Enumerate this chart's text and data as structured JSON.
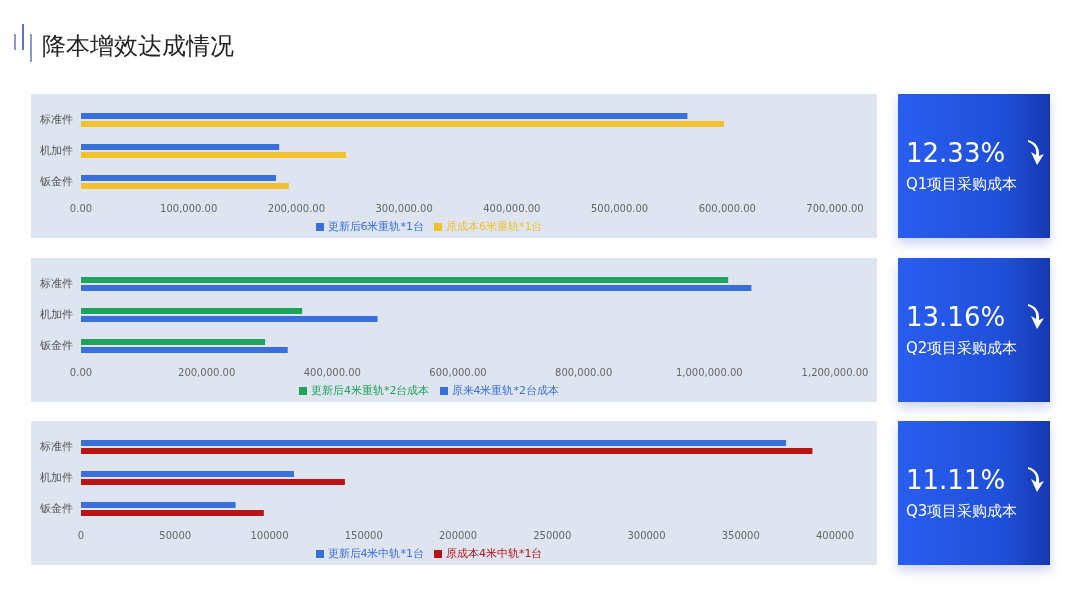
{
  "chart_data": [
    {
      "type": "bar",
      "orientation": "horizontal",
      "title": "降本增效达成情况",
      "categories": [
        "标准件",
        "机加件",
        "钣金件"
      ],
      "series": [
        {
          "name": "更新后6米重轨*1台",
          "color": "#3a6fdc",
          "values": [
            563000,
            184000,
            181000
          ]
        },
        {
          "name": "原成本6米重轨*1台",
          "color": "#f2c12e",
          "values": [
            597000,
            246000,
            193000
          ]
        }
      ],
      "xlim": [
        0,
        700000
      ],
      "xticks": [
        {
          "value": 0,
          "label": "0.00"
        },
        {
          "value": 100000,
          "label": "100,000.00"
        },
        {
          "value": 200000,
          "label": "200,000.00"
        },
        {
          "value": 300000,
          "label": "300,000.00"
        },
        {
          "value": 400000,
          "label": "400,000.00"
        },
        {
          "value": 500000,
          "label": "500,000.00"
        },
        {
          "value": 600000,
          "label": "600,000.00"
        },
        {
          "value": 700000,
          "label": "700,000.00"
        }
      ],
      "legend": "bottom"
    },
    {
      "type": "other",
      "title": "12.33%",
      "subtitle": "Q1项目采购成本"
    },
    {
      "type": "bar",
      "orientation": "horizontal",
      "categories": [
        "标准件",
        "机加件",
        "钣金件"
      ],
      "series": [
        {
          "name": "更新后4米重轨*2台成本",
          "color": "#1fa35a",
          "values": [
            1030000,
            352000,
            293000
          ]
        },
        {
          "name": "原来4米重轨*2台成本",
          "color": "#3a6fdc",
          "values": [
            1067000,
            472000,
            329000
          ]
        }
      ],
      "xlim": [
        0,
        1200000
      ],
      "xticks": [
        {
          "value": 0,
          "label": "0.00"
        },
        {
          "value": 200000,
          "label": "200,000.00"
        },
        {
          "value": 400000,
          "label": "400,000.00"
        },
        {
          "value": 600000,
          "label": "600,000.00"
        },
        {
          "value": 800000,
          "label": "800,000.00"
        },
        {
          "value": 1000000,
          "label": "1,000,000.00"
        },
        {
          "value": 1200000,
          "label": "1,200,000.00"
        }
      ],
      "legend": "bottom"
    },
    {
      "type": "other",
      "title": "13.16%",
      "subtitle": "Q2项目采购成本"
    },
    {
      "type": "bar",
      "orientation": "horizontal",
      "categories": [
        "标准件",
        "机加件",
        "钣金件"
      ],
      "series": [
        {
          "name": "更新后4米中轨*1台",
          "color": "#3a6fdc",
          "values": [
            374000,
            113000,
            82000
          ]
        },
        {
          "name": "原成本4米中轨*1台",
          "color": "#b81414",
          "values": [
            388000,
            140000,
            97000
          ]
        }
      ],
      "xlim": [
        0,
        400000
      ],
      "xticks": [
        0,
        50000,
        100000,
        150000,
        200000,
        250000,
        300000,
        350000,
        400000
      ],
      "legend": "bottom"
    },
    {
      "type": "other",
      "title": "11.11%",
      "subtitle": "Q3项目采购成本"
    }
  ]
}
